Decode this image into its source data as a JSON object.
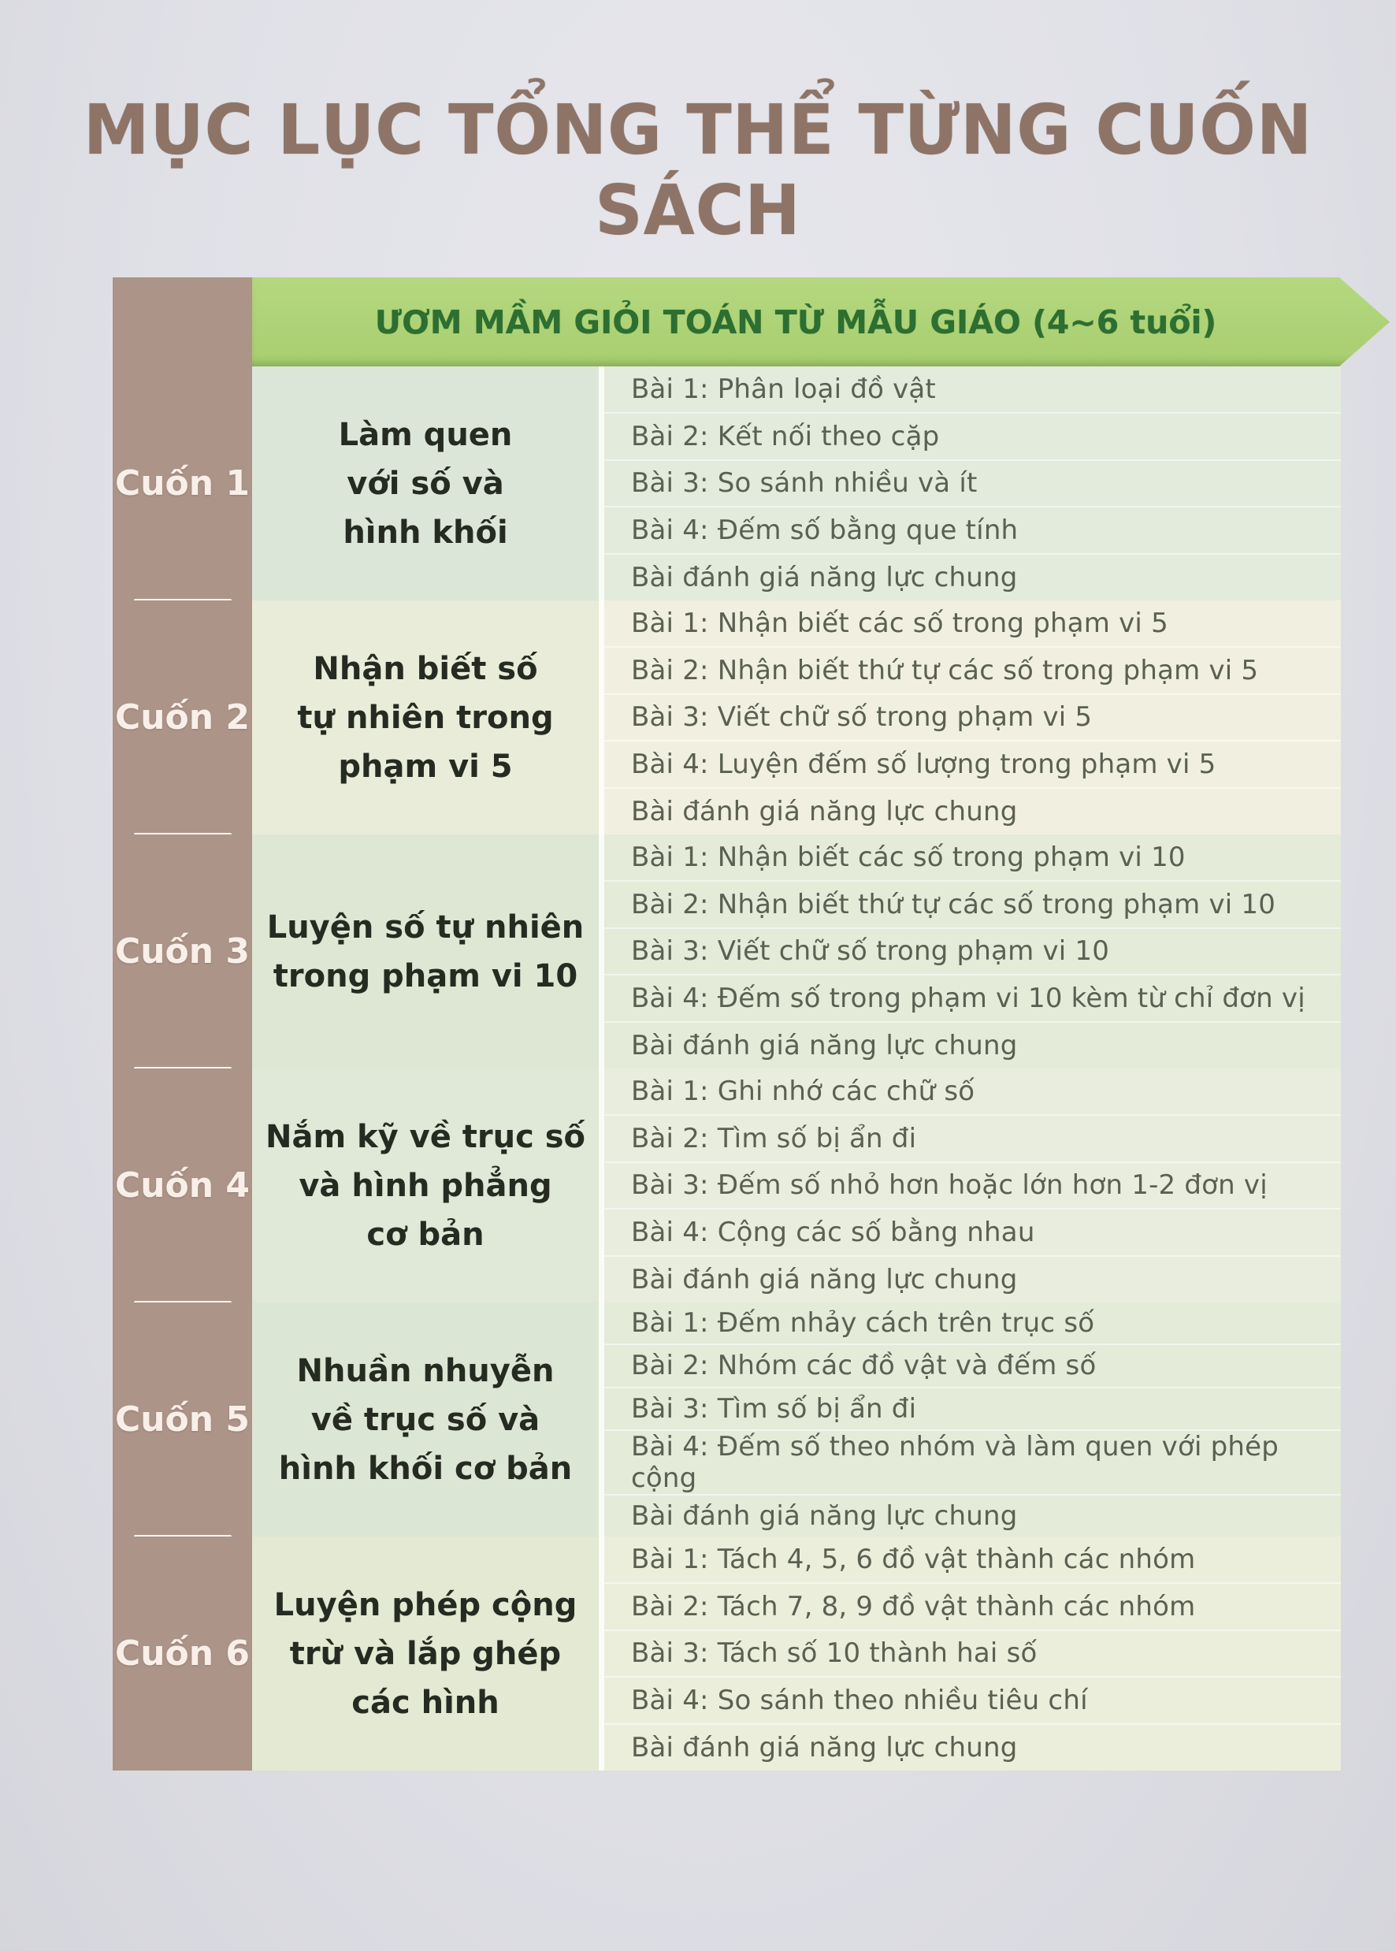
{
  "title": "MỤC LỤC TỔNG THỂ TỪNG CUỐN SÁCH",
  "series_header": "ƯƠM MẦM GIỎI TOÁN TỪ MẪU GIÁO (4~6 tuổi)",
  "sections": [
    {
      "book": "Cuốn 1",
      "topic": "Làm quen\nvới số và\nhình khối",
      "lessons": [
        "Bài 1: Phân loại đồ vật",
        "Bài 2: Kết nối theo cặp",
        "Bài 3: So sánh nhiều và ít",
        "Bài 4: Đếm số bằng que tính",
        "Bài đánh giá năng lực chung"
      ]
    },
    {
      "book": "Cuốn 2",
      "topic": "Nhận biết số\ntự nhiên trong\nphạm vi 5",
      "lessons": [
        "Bài 1: Nhận biết các số trong phạm vi 5",
        "Bài 2: Nhận biết thứ tự các số trong phạm vi 5",
        "Bài 3: Viết chữ số trong phạm vi 5",
        "Bài 4: Luyện đếm số lượng trong phạm vi 5",
        "Bài đánh giá năng lực chung"
      ]
    },
    {
      "book": "Cuốn 3",
      "topic": "Luyện số tự nhiên\ntrong phạm vi 10",
      "lessons": [
        "Bài 1: Nhận biết các số trong phạm vi 10",
        "Bài 2: Nhận biết thứ tự các số trong phạm vi 10",
        "Bài 3: Viết chữ số trong phạm vi 10",
        "Bài 4: Đếm số trong phạm vi 10 kèm từ chỉ đơn vị",
        "Bài đánh giá năng lực chung"
      ]
    },
    {
      "book": "Cuốn 4",
      "topic": "Nắm kỹ về trục số\nvà hình phẳng\ncơ bản",
      "lessons": [
        "Bài 1: Ghi nhớ các chữ số",
        "Bài 2: Tìm số bị ẩn đi",
        "Bài 3: Đếm số nhỏ hơn hoặc lớn hơn 1-2 đơn vị",
        "Bài 4: Cộng các số bằng nhau",
        "Bài đánh giá năng lực chung"
      ]
    },
    {
      "book": "Cuốn 5",
      "topic": "Nhuần nhuyễn\nvề trục số và\nhình khối cơ bản",
      "lessons": [
        "Bài 1: Đếm nhảy cách trên trục số",
        "Bài 2: Nhóm các đồ vật và đếm số",
        "Bài 3: Tìm số bị ẩn đi",
        "Bài 4: Đếm số theo nhóm và làm quen với phép cộng",
        "Bài đánh giá năng lực chung"
      ]
    },
    {
      "book": "Cuốn 6",
      "topic": "Luyện phép cộng\ntrừ và lắp ghép\ncác hình",
      "lessons": [
        "Bài 1: Tách 4, 5, 6 đồ vật thành các nhóm",
        "Bài 2: Tách 7, 8, 9 đồ vật thành các nhóm",
        "Bài 3: Tách số 10 thành hai số",
        "Bài 4: So sánh theo nhiều tiêu chí",
        "Bài đánh giá năng lực chung"
      ]
    }
  ],
  "colors": {
    "banner_green": "#a8ce70",
    "banner_text_green": "#2d6e31",
    "book_column_tan": "#ac9489",
    "book_label_white": "#f9efe9",
    "title_brown": "#8d7467",
    "lesson_text": "#5a6052",
    "paper_background": "#e0e0e7"
  }
}
